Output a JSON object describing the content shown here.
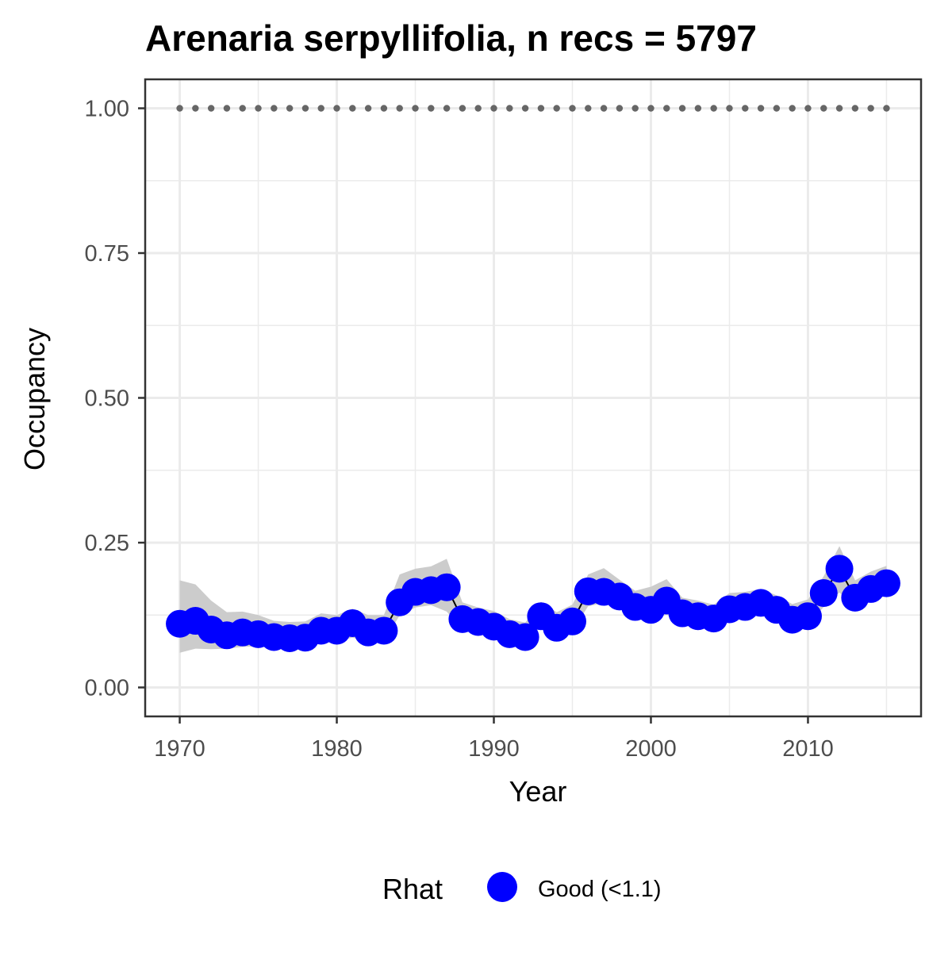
{
  "chart_data": {
    "type": "line",
    "title": "Arenaria serpyllifolia, n recs = 5797",
    "xlabel": "Year",
    "ylabel": "Occupancy",
    "xlim": [
      1967.8,
      2017.2
    ],
    "ylim": [
      -0.05,
      1.05
    ],
    "x_ticks": [
      1970,
      1980,
      1990,
      2000,
      2010
    ],
    "x_tick_labels": [
      "1970",
      "1980",
      "1990",
      "2000",
      "2010"
    ],
    "x_minor_ticks": [
      1975,
      1985,
      1995,
      2005,
      2015
    ],
    "y_ticks": [
      0,
      0.25,
      0.5,
      0.75,
      1.0
    ],
    "y_tick_labels": [
      "0.00",
      "0.25",
      "0.50",
      "0.75",
      "1.00"
    ],
    "y_minor_ticks": [
      0.125,
      0.375,
      0.625,
      0.875
    ],
    "grid": true,
    "legend": {
      "position": "bottom",
      "title": "Rhat",
      "entries": [
        {
          "label": "Good (<1.1)",
          "color": "#0000FF"
        }
      ]
    },
    "colors": {
      "points": "#0000FF",
      "line": "#000000",
      "ribbon": "#CCCCCC",
      "reference_dots": "#666666",
      "grid": "#EBEBEB",
      "panel_border": "#333333"
    },
    "x": [
      1970,
      1971,
      1972,
      1973,
      1974,
      1975,
      1976,
      1977,
      1978,
      1979,
      1980,
      1981,
      1982,
      1983,
      1984,
      1985,
      1986,
      1987,
      1988,
      1989,
      1990,
      1991,
      1992,
      1993,
      1994,
      1995,
      1996,
      1997,
      1998,
      1999,
      2000,
      2001,
      2002,
      2003,
      2004,
      2005,
      2006,
      2007,
      2008,
      2009,
      2010,
      2011,
      2012,
      2013,
      2014,
      2015
    ],
    "series": [
      {
        "values": [
          0.11,
          0.115,
          0.1,
          0.09,
          0.095,
          0.092,
          0.087,
          0.085,
          0.086,
          0.098,
          0.098,
          0.111,
          0.095,
          0.098,
          0.147,
          0.165,
          0.168,
          0.173,
          0.118,
          0.113,
          0.105,
          0.092,
          0.087,
          0.123,
          0.103,
          0.114,
          0.166,
          0.165,
          0.157,
          0.139,
          0.134,
          0.15,
          0.128,
          0.123,
          0.119,
          0.135,
          0.139,
          0.146,
          0.134,
          0.117,
          0.123,
          0.163,
          0.205,
          0.155,
          0.17,
          0.18
        ],
        "lower": [
          0.06,
          0.067,
          0.066,
          0.067,
          0.07,
          0.071,
          0.07,
          0.07,
          0.071,
          0.077,
          0.08,
          0.086,
          0.079,
          0.081,
          0.124,
          0.138,
          0.142,
          0.131,
          0.099,
          0.097,
          0.093,
          0.082,
          0.076,
          0.105,
          0.09,
          0.098,
          0.14,
          0.146,
          0.138,
          0.118,
          0.117,
          0.126,
          0.112,
          0.109,
          0.105,
          0.116,
          0.121,
          0.129,
          0.116,
          0.102,
          0.108,
          0.139,
          0.164,
          0.137,
          0.15,
          0.158
        ],
        "upper": [
          0.185,
          0.178,
          0.15,
          0.13,
          0.131,
          0.125,
          0.115,
          0.113,
          0.114,
          0.128,
          0.125,
          0.136,
          0.125,
          0.125,
          0.195,
          0.205,
          0.209,
          0.222,
          0.147,
          0.138,
          0.132,
          0.118,
          0.112,
          0.148,
          0.13,
          0.143,
          0.195,
          0.206,
          0.186,
          0.167,
          0.174,
          0.187,
          0.155,
          0.15,
          0.143,
          0.163,
          0.165,
          0.17,
          0.159,
          0.144,
          0.152,
          0.192,
          0.244,
          0.185,
          0.2,
          0.21
        ]
      }
    ],
    "reference_line": {
      "y": 1.0,
      "style": "dotted"
    }
  }
}
